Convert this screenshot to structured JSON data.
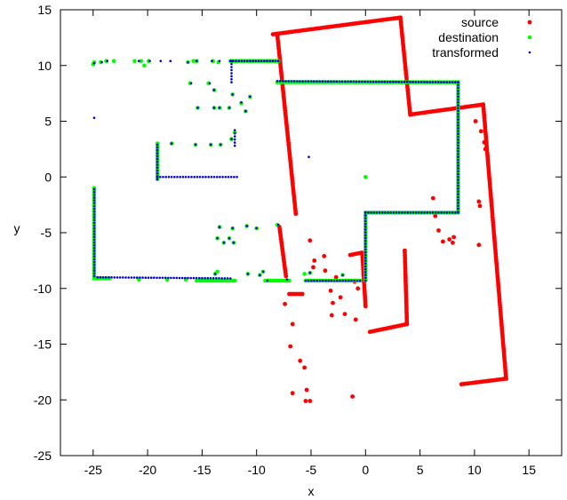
{
  "chart_data": {
    "type": "scatter",
    "title": "",
    "xlabel": "x",
    "ylabel": "y",
    "xlim": [
      -28,
      18
    ],
    "ylim": [
      -25,
      15
    ],
    "xticks": [
      -25,
      -20,
      -15,
      -10,
      -5,
      0,
      5,
      10,
      15
    ],
    "yticks": [
      -25,
      -20,
      -15,
      -10,
      -5,
      0,
      5,
      10,
      15
    ],
    "grid": false,
    "legend_position": "top-right",
    "series": [
      {
        "name": "source",
        "color": "#ff0000",
        "segments": [
          [
            [
              -8.5,
              12.8
            ],
            [
              3.2,
              14.3
            ]
          ],
          [
            [
              3.2,
              14.3
            ],
            [
              4.1,
              5.6
            ]
          ],
          [
            [
              4.1,
              5.6
            ],
            [
              10.8,
              6.5
            ]
          ],
          [
            [
              10.8,
              6.5
            ],
            [
              12.9,
              -18.1
            ]
          ],
          [
            [
              12.9,
              -18.1
            ],
            [
              8.8,
              -18.6
            ]
          ],
          [
            [
              3.6,
              -6.6
            ],
            [
              3.8,
              -13.2
            ]
          ],
          [
            [
              3.8,
              -13.2
            ],
            [
              0.4,
              -13.9
            ]
          ],
          [
            [
              -8.1,
              12.8
            ],
            [
              -6.4,
              -3.3
            ]
          ],
          [
            [
              -7.9,
              -4.5
            ],
            [
              -7.3,
              -8.9
            ]
          ],
          [
            [
              -7.0,
              -10.5
            ],
            [
              -5.8,
              -10.5
            ]
          ],
          [
            [
              -0.3,
              -6.8
            ],
            [
              0.0,
              -11.6
            ]
          ],
          [
            [
              -1.4,
              -7.0
            ],
            [
              -0.4,
              -6.8
            ]
          ]
        ],
        "points": [
          [
            -5.1,
            -5.7
          ],
          [
            -4.8,
            -8.1
          ],
          [
            -4.7,
            -7.5
          ],
          [
            -3.8,
            -7.1
          ],
          [
            -3.7,
            -8.4
          ],
          [
            -3.2,
            -10.2
          ],
          [
            -3.0,
            -11.3
          ],
          [
            -2.7,
            -9.0
          ],
          [
            -2.3,
            -10.8
          ],
          [
            -1.9,
            -12.3
          ],
          [
            -3.1,
            -12.4
          ],
          [
            -0.7,
            -10.0
          ],
          [
            -0.9,
            -12.8
          ],
          [
            -6.7,
            -13.2
          ],
          [
            -7.4,
            -11.4
          ],
          [
            -6.9,
            -15.2
          ],
          [
            -6.0,
            -16.5
          ],
          [
            -5.6,
            -17.1
          ],
          [
            -5.4,
            -19.1
          ],
          [
            -5.5,
            -20.1
          ],
          [
            -5.1,
            -20.1
          ],
          [
            -6.7,
            -19.4
          ],
          [
            -1.2,
            -19.7
          ],
          [
            6.2,
            -1.9
          ],
          [
            6.4,
            -3.5
          ],
          [
            6.7,
            -4.8
          ],
          [
            7.1,
            -5.8
          ],
          [
            7.7,
            -5.6
          ],
          [
            8.1,
            -5.4
          ],
          [
            8.0,
            -5.9
          ],
          [
            10.1,
            5.0
          ],
          [
            10.6,
            4.1
          ],
          [
            10.9,
            3.1
          ],
          [
            11.0,
            2.5
          ],
          [
            10.4,
            -2.2
          ],
          [
            10.5,
            -2.6
          ],
          [
            10.4,
            -6.1
          ],
          [
            -0.2,
            -8.7
          ],
          [
            -1.0,
            -9.4
          ]
        ]
      },
      {
        "name": "destination",
        "color": "#00ff00",
        "segments": [
          [
            [
              -24.9,
              -1.0
            ],
            [
              -24.9,
              -8.9
            ]
          ],
          [
            [
              -19.1,
              3.0
            ],
            [
              -19.1,
              -0.2
            ]
          ],
          [
            [
              -12.4,
              10.4
            ],
            [
              -8.0,
              10.4
            ]
          ],
          [
            [
              -8.1,
              8.5
            ],
            [
              8.5,
              8.5
            ]
          ],
          [
            [
              8.5,
              8.5
            ],
            [
              8.5,
              -3.1
            ]
          ],
          [
            [
              0.0,
              -3.2
            ],
            [
              8.5,
              -3.2
            ]
          ],
          [
            [
              0.0,
              -3.2
            ],
            [
              0.0,
              -9.3
            ]
          ],
          [
            [
              -24.9,
              -9.1
            ],
            [
              -23.5,
              -9.1
            ]
          ],
          [
            [
              -15.5,
              -9.3
            ],
            [
              -12.0,
              -9.3
            ]
          ],
          [
            [
              -9.2,
              -9.3
            ],
            [
              -7.0,
              -9.3
            ]
          ],
          [
            [
              -5.5,
              -9.3
            ],
            [
              -0.5,
              -9.3
            ]
          ]
        ],
        "points": [
          [
            -25.0,
            10.1
          ],
          [
            -24.9,
            10.3
          ],
          [
            -24.3,
            10.3
          ],
          [
            -23.8,
            10.4
          ],
          [
            -23.1,
            10.4
          ],
          [
            -21.2,
            10.4
          ],
          [
            -20.6,
            10.4
          ],
          [
            -20.3,
            10.0
          ],
          [
            -19.9,
            10.4
          ],
          [
            -16.3,
            10.3
          ],
          [
            -15.8,
            10.4
          ],
          [
            -15.5,
            10.4
          ],
          [
            -14.0,
            10.4
          ],
          [
            -13.5,
            10.3
          ],
          [
            -16.1,
            8.4
          ],
          [
            -14.4,
            8.4
          ],
          [
            -13.9,
            7.8
          ],
          [
            -12.2,
            7.4
          ],
          [
            -10.6,
            7.2
          ],
          [
            -15.4,
            6.2
          ],
          [
            -13.9,
            6.2
          ],
          [
            -13.4,
            6.2
          ],
          [
            -12.5,
            6.2
          ],
          [
            -11.4,
            6.6
          ],
          [
            -11.0,
            5.9
          ],
          [
            -17.8,
            3.0
          ],
          [
            -15.6,
            2.9
          ],
          [
            -14.2,
            2.9
          ],
          [
            -13.3,
            2.9
          ],
          [
            -12.3,
            3.4
          ],
          [
            -12.0,
            4.0
          ],
          [
            -13.4,
            -4.5
          ],
          [
            -12.2,
            -4.6
          ],
          [
            -10.9,
            -4.4
          ],
          [
            -10.0,
            -4.6
          ],
          [
            -8.1,
            -4.3
          ],
          [
            -13.6,
            -5.5
          ],
          [
            -12.5,
            -5.5
          ],
          [
            -13.0,
            -5.9
          ],
          [
            -12.1,
            -5.9
          ],
          [
            -13.8,
            -8.7
          ],
          [
            -13.6,
            -8.5
          ],
          [
            -10.8,
            -8.7
          ],
          [
            -9.7,
            -8.8
          ],
          [
            -9.4,
            -8.5
          ],
          [
            -5.6,
            -8.7
          ],
          [
            -5.1,
            -8.6
          ],
          [
            -2.1,
            -8.8
          ],
          [
            0.0,
            0.0
          ],
          [
            -20.8,
            -9.2
          ],
          [
            -18.2,
            -9.2
          ],
          [
            -16.5,
            -9.2
          ]
        ]
      },
      {
        "name": "transformed",
        "color": "#0000cc",
        "segments": [
          [
            [
              -24.9,
              -1.1
            ],
            [
              -24.9,
              -8.9
            ]
          ],
          [
            [
              -24.6,
              -9.0
            ],
            [
              -12.4,
              -9.1
            ]
          ],
          [
            [
              -19.1,
              2.9
            ],
            [
              -19.1,
              -0.2
            ]
          ],
          [
            [
              -19.1,
              0.0
            ],
            [
              -11.8,
              0.0
            ]
          ],
          [
            [
              -12.4,
              10.4
            ],
            [
              -8.0,
              10.4
            ]
          ],
          [
            [
              -8.1,
              8.6
            ],
            [
              8.5,
              8.5
            ]
          ],
          [
            [
              8.5,
              8.5
            ],
            [
              8.5,
              -3.1
            ]
          ],
          [
            [
              0.0,
              -3.2
            ],
            [
              8.5,
              -3.2
            ]
          ],
          [
            [
              0.0,
              -3.2
            ],
            [
              0.0,
              -9.3
            ]
          ],
          [
            [
              -12.3,
              10.4
            ],
            [
              -12.3,
              8.5
            ]
          ],
          [
            [
              -5.5,
              -9.3
            ],
            [
              -0.5,
              -9.3
            ]
          ],
          [
            [
              -12.0,
              4.2
            ],
            [
              -12.0,
              2.8
            ]
          ]
        ],
        "points": [
          [
            -24.9,
            10.2
          ],
          [
            -24.2,
            10.3
          ],
          [
            -23.7,
            10.4
          ],
          [
            -20.8,
            10.4
          ],
          [
            -19.8,
            10.4
          ],
          [
            -18.8,
            10.4
          ],
          [
            -17.9,
            10.4
          ],
          [
            -24.9,
            5.3
          ],
          [
            -16.3,
            10.3
          ],
          [
            -15.5,
            10.4
          ],
          [
            -14.1,
            10.4
          ],
          [
            -13.4,
            10.4
          ],
          [
            -16.0,
            8.4
          ],
          [
            -14.3,
            8.4
          ],
          [
            -13.9,
            7.8
          ],
          [
            -12.2,
            7.4
          ],
          [
            -10.6,
            7.2
          ],
          [
            -15.4,
            6.2
          ],
          [
            -13.9,
            6.2
          ],
          [
            -13.4,
            6.2
          ],
          [
            -12.5,
            6.2
          ],
          [
            -11.4,
            6.7
          ],
          [
            -11.0,
            5.9
          ],
          [
            -17.8,
            3.0
          ],
          [
            -15.6,
            2.9
          ],
          [
            -14.2,
            2.9
          ],
          [
            -13.3,
            2.9
          ],
          [
            -12.3,
            3.4
          ],
          [
            -13.4,
            -4.5
          ],
          [
            -12.2,
            -4.6
          ],
          [
            -10.9,
            -4.4
          ],
          [
            -10.0,
            -4.6
          ],
          [
            -8.0,
            -4.3
          ],
          [
            -13.6,
            -5.5
          ],
          [
            -12.5,
            -5.5
          ],
          [
            -13.0,
            -5.9
          ],
          [
            -12.1,
            -5.9
          ],
          [
            -13.8,
            -8.7
          ],
          [
            -10.8,
            -8.7
          ],
          [
            -9.7,
            -8.8
          ],
          [
            -9.4,
            -8.5
          ],
          [
            -5.1,
            -8.6
          ],
          [
            -2.1,
            -8.8
          ],
          [
            -5.2,
            1.8
          ],
          [
            -7.2,
            -9.2
          ],
          [
            -9.0,
            -9.3
          ]
        ]
      }
    ]
  }
}
